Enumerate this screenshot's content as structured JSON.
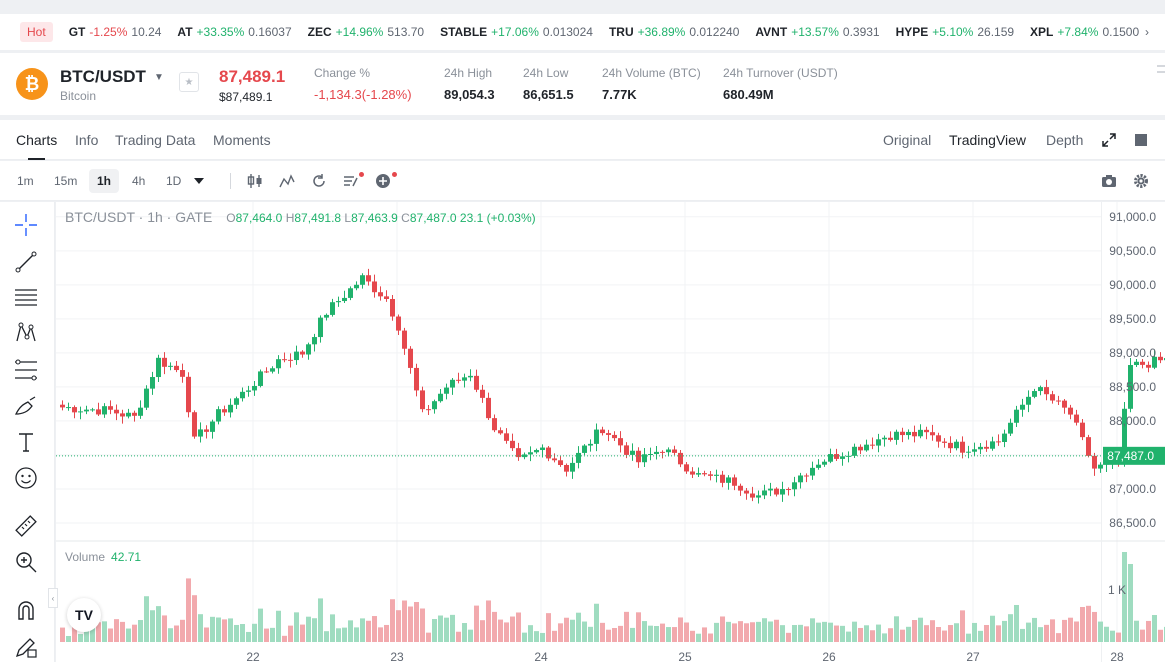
{
  "ticker": {
    "hot_label": "Hot",
    "items": [
      {
        "sym": "GT",
        "chg": "-1.25%",
        "dir": "down",
        "px": "10.24"
      },
      {
        "sym": "AT",
        "chg": "+33.35%",
        "dir": "up",
        "px": "0.16037"
      },
      {
        "sym": "ZEC",
        "chg": "+14.96%",
        "dir": "up",
        "px": "513.70"
      },
      {
        "sym": "STABLE",
        "chg": "+17.06%",
        "dir": "up",
        "px": "0.013024"
      },
      {
        "sym": "TRU",
        "chg": "+36.89%",
        "dir": "up",
        "px": "0.012240"
      },
      {
        "sym": "AVNT",
        "chg": "+13.57%",
        "dir": "up",
        "px": "0.3931"
      },
      {
        "sym": "HYPE",
        "chg": "+5.10%",
        "dir": "up",
        "px": "26.159"
      },
      {
        "sym": "XPL",
        "chg": "+7.84%",
        "dir": "up",
        "px": "0.1500"
      }
    ],
    "next_arrow": "›"
  },
  "header": {
    "coin_icon": "₿",
    "pair": "BTC/USDT",
    "coin_name": "Bitcoin",
    "last_price": "87,489.1",
    "last_usd": "$87,489.1",
    "change_label": "Change %",
    "change_value": "-1,134.3(-1.28%)",
    "high_label": "24h High",
    "high_value": "89,054.3",
    "low_label": "24h Low",
    "low_value": "86,651.5",
    "volume_label": "24h Volume (BTC)",
    "volume_value": "7.77K",
    "turnover_label": "24h Turnover (USDT)",
    "turnover_value": "680.49M"
  },
  "tabs": [
    "Charts",
    "Info",
    "Trading Data",
    "Moments"
  ],
  "views": [
    "Original",
    "TradingView",
    "Depth"
  ],
  "intervals": [
    "1m",
    "15m",
    "1h",
    "4h",
    "1D"
  ],
  "legend": {
    "title": "BTC/USDT · 1h · GATE",
    "o_key": "O",
    "o_val": "87,464.0",
    "h_key": "H",
    "h_val": "87,491.8",
    "l_key": "L",
    "l_val": "87,463.9",
    "c_key": "C",
    "c_val": "87,487.0",
    "change": "23.1 (+0.03%)"
  },
  "volume_legend": {
    "label": "Volume",
    "value": "42.71"
  },
  "tv_logo": "TV",
  "collapse": "‹",
  "colors": {
    "up": "#20b26c",
    "down": "#e5484d",
    "up_vol": "#9fdcc0",
    "down_vol": "#f2a9ad"
  },
  "chart_data": {
    "type": "candlestick",
    "ylim": [
      86250,
      91100
    ],
    "y_ticks": [
      91000,
      90500,
      90000,
      89500,
      89000,
      88500,
      88000,
      87500,
      87000,
      86500
    ],
    "y_tick_labels": [
      "91,000.0",
      "90,500.0",
      "90,000.0",
      "89,500.0",
      "89,000.0",
      "88,500.0",
      "88,000.0",
      "87,500.0",
      "87,000.0",
      "86,500.0"
    ],
    "x_ticks": [
      "22",
      "23",
      "24",
      "25",
      "26",
      "27",
      "28"
    ],
    "current_price": 87487.0,
    "current_price_label": "87,487.0",
    "volume_tick_label": "1 K",
    "candles_per_day": 24,
    "first_day_offset": 10,
    "anchors": [
      [
        0,
        88200
      ],
      [
        8,
        88150
      ],
      [
        12,
        88050
      ],
      [
        16,
        88900
      ],
      [
        20,
        88700
      ],
      [
        22,
        87700
      ],
      [
        26,
        88100
      ],
      [
        30,
        88400
      ],
      [
        36,
        88900
      ],
      [
        40,
        89000
      ],
      [
        44,
        89600
      ],
      [
        50,
        90100
      ],
      [
        54,
        89800
      ],
      [
        56,
        89400
      ],
      [
        60,
        88100
      ],
      [
        64,
        88500
      ],
      [
        68,
        88700
      ],
      [
        72,
        87900
      ],
      [
        76,
        87400
      ],
      [
        80,
        87600
      ],
      [
        84,
        87300
      ],
      [
        90,
        87900
      ],
      [
        96,
        87400
      ],
      [
        100,
        87600
      ],
      [
        106,
        87200
      ],
      [
        112,
        87100
      ],
      [
        116,
        86900
      ],
      [
        120,
        87000
      ],
      [
        126,
        87400
      ],
      [
        132,
        87600
      ],
      [
        138,
        87800
      ],
      [
        144,
        87800
      ],
      [
        150,
        87600
      ],
      [
        156,
        87700
      ],
      [
        162,
        88500
      ],
      [
        168,
        88100
      ],
      [
        172,
        87300
      ],
      [
        176,
        87400
      ],
      [
        178,
        88800
      ],
      [
        184,
        88900
      ],
      [
        186,
        88600
      ],
      [
        190,
        89000
      ],
      [
        192,
        87200
      ],
      [
        196,
        86800
      ],
      [
        200,
        87400
      ],
      [
        208,
        87400
      ],
      [
        216,
        87500
      ],
      [
        220,
        87550
      ],
      [
        224,
        87487
      ]
    ],
    "volume_max": 1400
  }
}
